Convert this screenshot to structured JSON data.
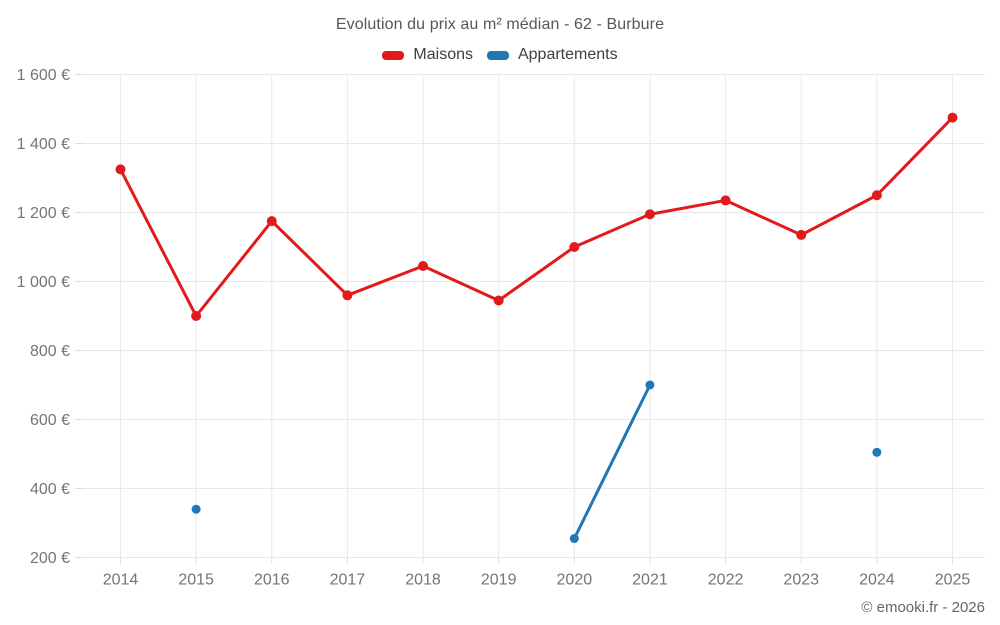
{
  "chart_data": {
    "type": "line",
    "title": "Evolution du prix au m² médian - 62 - Burbure",
    "categories": [
      "2014",
      "2015",
      "2016",
      "2017",
      "2018",
      "2019",
      "2020",
      "2021",
      "2022",
      "2023",
      "2024",
      "2025"
    ],
    "series": [
      {
        "name": "Maisons",
        "color": "#e31a1c",
        "point_radius": 5,
        "values": [
          1325,
          900,
          1175,
          960,
          1045,
          945,
          1100,
          1195,
          1235,
          1135,
          1250,
          1475
        ]
      },
      {
        "name": "Appartements",
        "color": "#1f78b4",
        "point_radius": 4.5,
        "values": [
          null,
          340,
          null,
          null,
          null,
          null,
          255,
          700,
          null,
          null,
          505,
          null
        ]
      }
    ],
    "ylim": [
      200,
      1600
    ],
    "ytick_step": 200,
    "y_tick_labels": [
      "200 €",
      "400 €",
      "600 €",
      "800 €",
      "1 000 €",
      "1 200 €",
      "1 400 €",
      "1 600 €"
    ],
    "grid": true,
    "legend_position": "top",
    "span_gaps": false,
    "axis_label_color": "#757575",
    "grid_color": "#e9e9e9",
    "tick_color": "#dddddd"
  },
  "footer": {
    "copyright": "© emooki.fr - 2026"
  }
}
